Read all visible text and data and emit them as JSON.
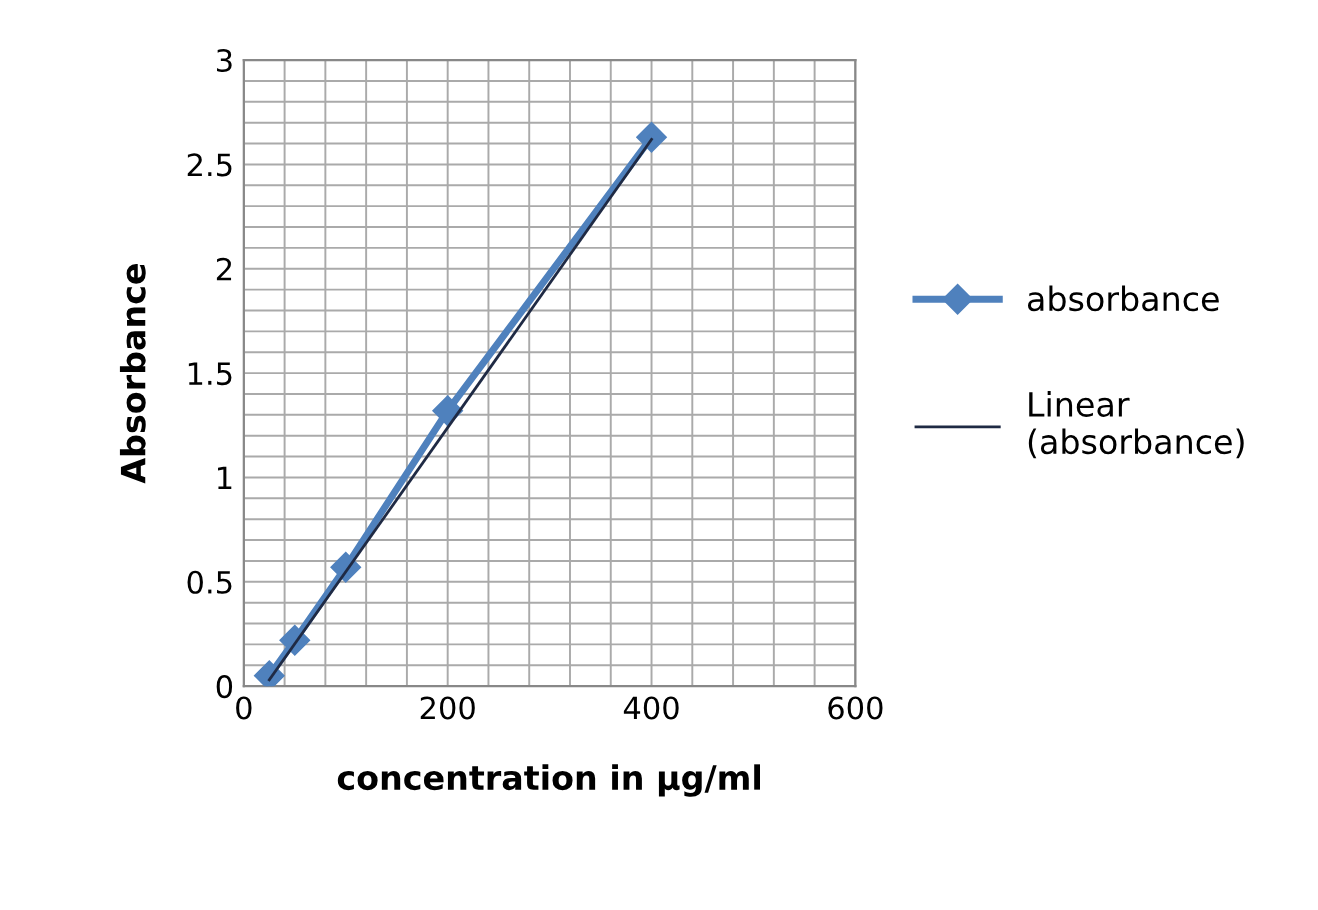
{
  "chart_data": {
    "type": "line",
    "xlabel": "concentration in µg/ml",
    "ylabel": "Absorbance",
    "x": [
      25,
      50,
      100,
      200,
      400
    ],
    "series": [
      {
        "name": "absorbance",
        "color": "#4f81bd",
        "values": [
          0.05,
          0.22,
          0.57,
          1.32,
          2.63
        ],
        "marker": "diamond"
      },
      {
        "name": "Linear\n(absorbance)",
        "color": "#1f2a44",
        "x": [
          25,
          400
        ],
        "values": [
          0.03,
          2.62
        ],
        "marker": "none"
      }
    ],
    "xlim": [
      0,
      600
    ],
    "xticks": [
      0,
      {
        "value": 40,
        "label": null
      },
      {
        "value": 80,
        "label": null
      },
      {
        "value": 120,
        "label": null
      },
      {
        "value": 160,
        "label": null
      },
      200,
      {
        "value": 240,
        "label": null
      },
      {
        "value": 280,
        "label": null
      },
      {
        "value": 320,
        "label": null
      },
      {
        "value": 360,
        "label": null
      },
      400,
      {
        "value": 440,
        "label": null
      },
      {
        "value": 480,
        "label": null
      },
      {
        "value": 520,
        "label": null
      },
      {
        "value": 560,
        "label": null
      },
      600
    ],
    "ylim": [
      0,
      3
    ],
    "yticks": [
      0,
      {
        "value": 0.1,
        "label": null
      },
      {
        "value": 0.2,
        "label": null
      },
      {
        "value": 0.3,
        "label": null
      },
      {
        "value": 0.4,
        "label": null
      },
      0.5,
      {
        "value": 0.6,
        "label": null
      },
      {
        "value": 0.7,
        "label": null
      },
      {
        "value": 0.8,
        "label": null
      },
      {
        "value": 0.9,
        "label": null
      },
      1,
      {
        "value": 1.1,
        "label": null
      },
      {
        "value": 1.2,
        "label": null
      },
      {
        "value": 1.3,
        "label": null
      },
      {
        "value": 1.4,
        "label": null
      },
      1.5,
      {
        "value": 1.6,
        "label": null
      },
      {
        "value": 1.7,
        "label": null
      },
      {
        "value": 1.8,
        "label": null
      },
      {
        "value": 1.9,
        "label": null
      },
      2,
      {
        "value": 2.1,
        "label": null
      },
      {
        "value": 2.2,
        "label": null
      },
      {
        "value": 2.3,
        "label": null
      },
      {
        "value": 2.4,
        "label": null
      },
      2.5,
      {
        "value": 2.6,
        "label": null
      },
      {
        "value": 2.7,
        "label": null
      },
      {
        "value": 2.8,
        "label": null
      },
      {
        "value": 2.9,
        "label": null
      },
      3
    ],
    "grid": true,
    "legend": "right"
  }
}
